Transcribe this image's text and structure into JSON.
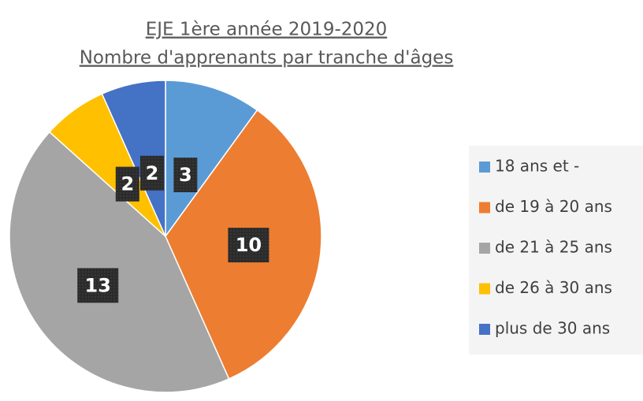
{
  "chart_data": {
    "type": "pie",
    "title": "EJE 1ère année 2019-2020",
    "subtitle": "Nombre d'apprenants par tranche d'âges",
    "categories": [
      "18 ans et -",
      "de 19 à 20 ans",
      "de 21 à 25 ans",
      "de 26 à 30 ans",
      "plus de 30 ans"
    ],
    "values": [
      3,
      10,
      13,
      2,
      2
    ],
    "colors": [
      "#5b9bd5",
      "#ed7d31",
      "#a5a5a5",
      "#ffc000",
      "#4472c4"
    ],
    "legend": "right"
  }
}
